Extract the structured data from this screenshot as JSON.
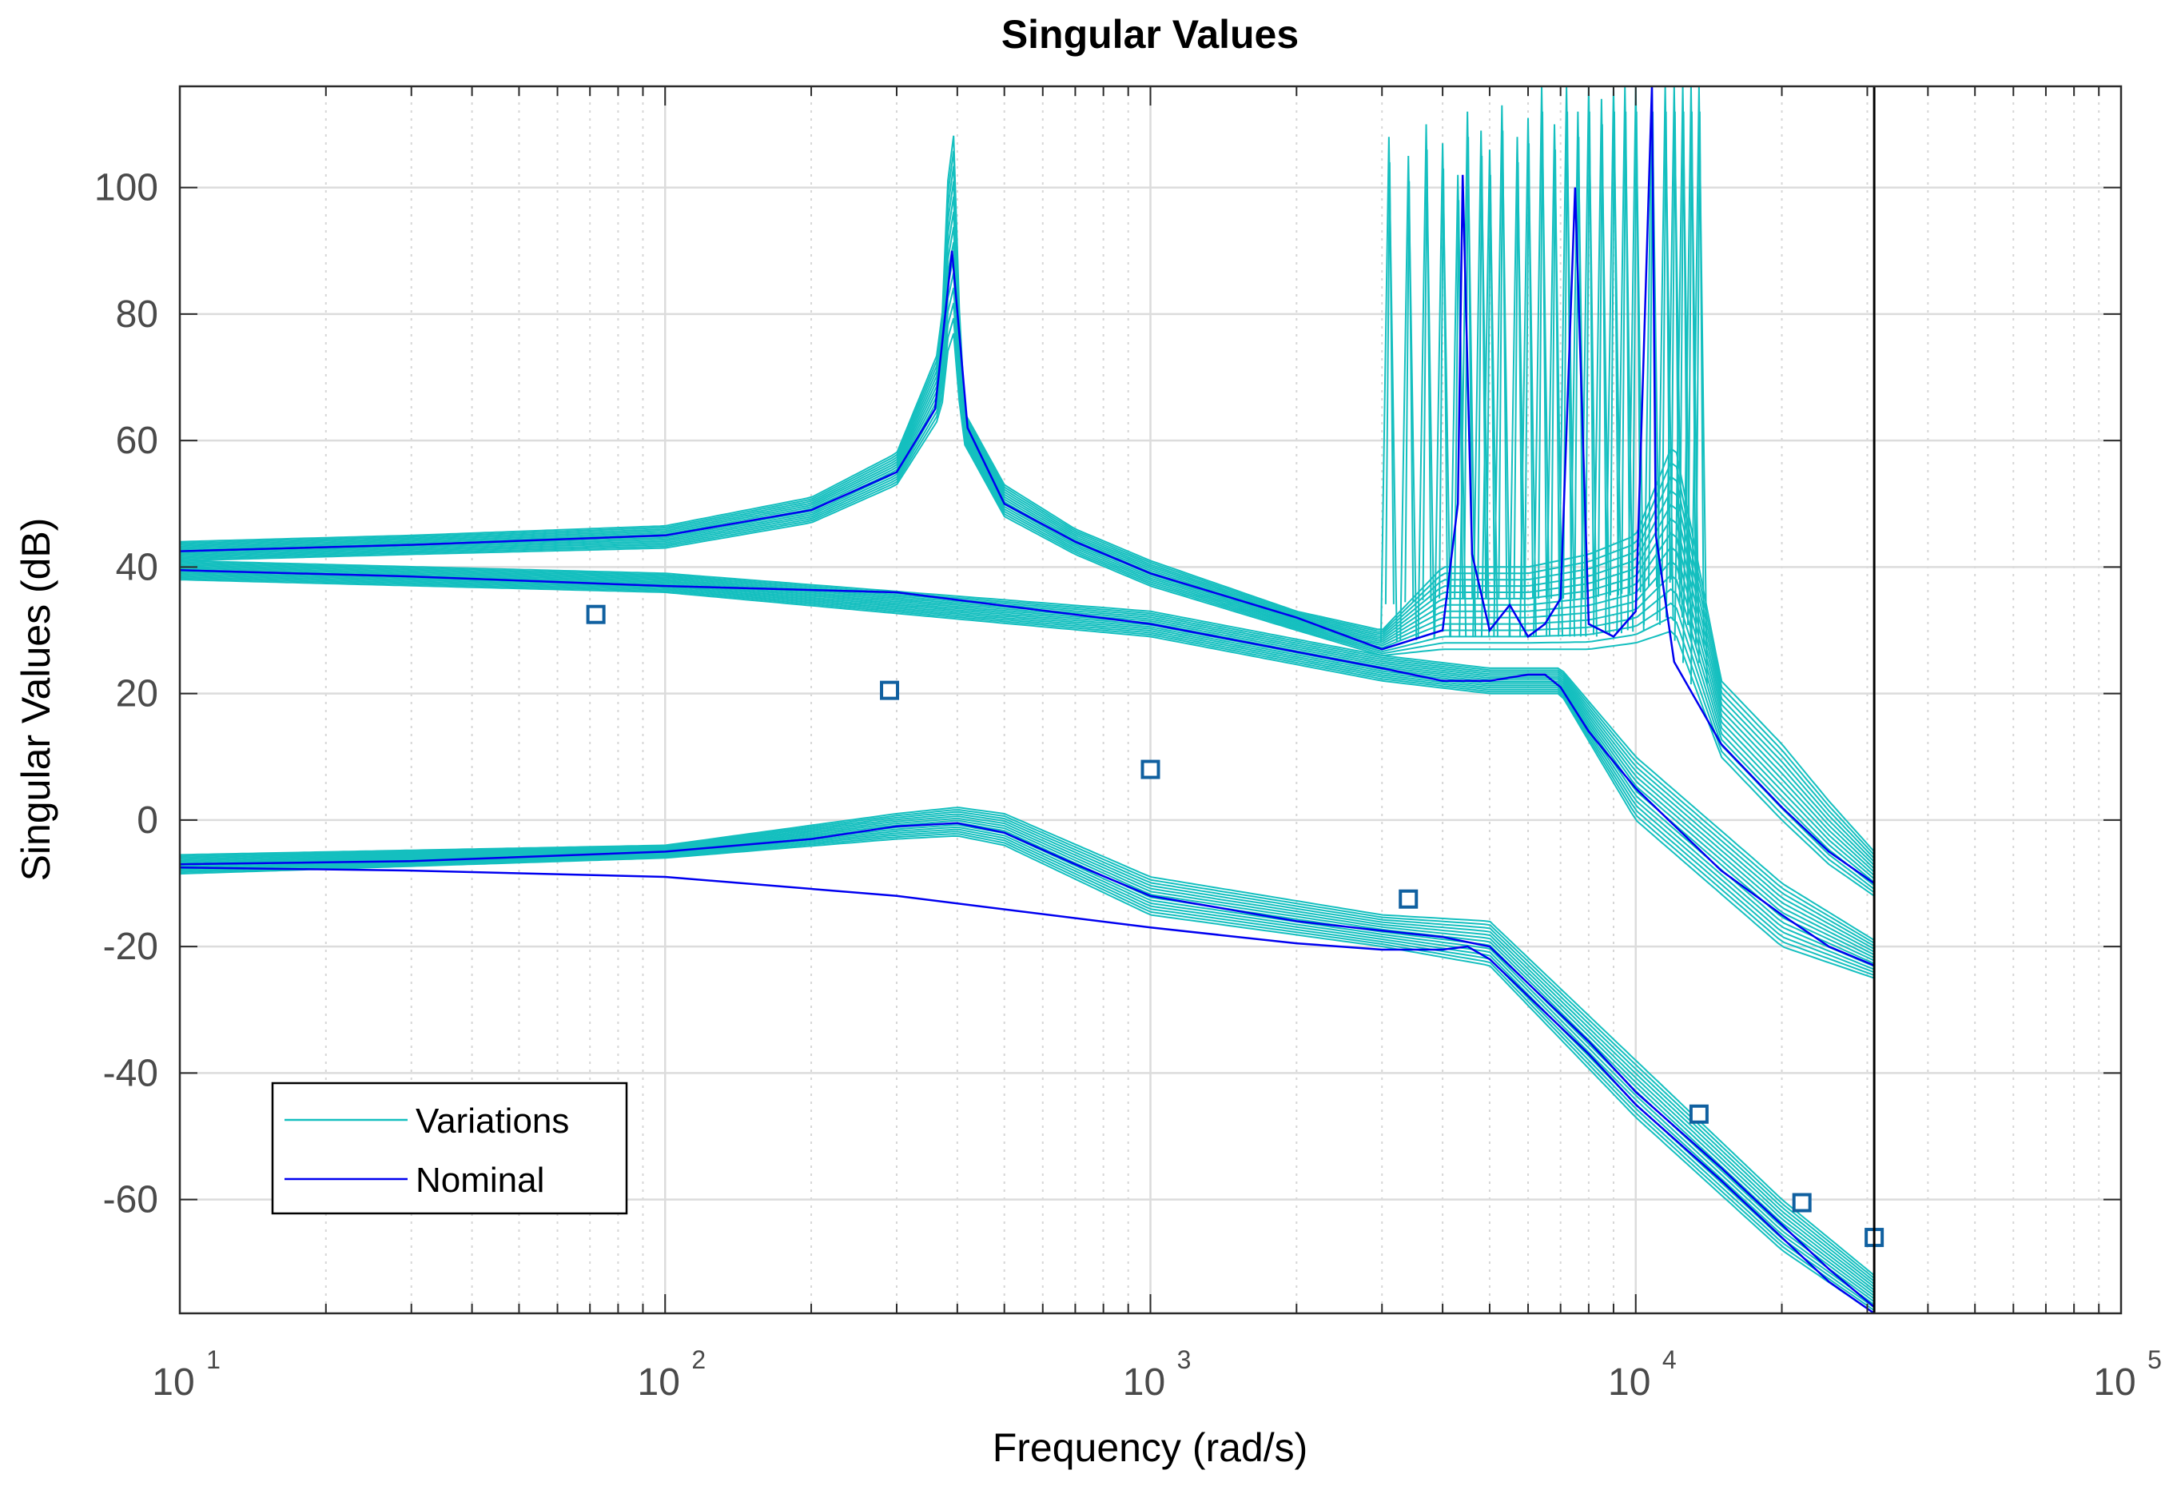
{
  "chart_data": {
    "type": "line",
    "title": "Singular Values",
    "xlabel": "Frequency (rad/s)",
    "ylabel": "Singular Values (dB)",
    "xscale": "log",
    "xlim": [
      10,
      100000
    ],
    "ylim": [
      -78,
      116
    ],
    "x_ticks": [
      {
        "base": "10",
        "exp": "1"
      },
      {
        "base": "10",
        "exp": "2"
      },
      {
        "base": "10",
        "exp": "3"
      },
      {
        "base": "10",
        "exp": "4"
      },
      {
        "base": "10",
        "exp": "5"
      }
    ],
    "y_ticks": [
      "100",
      "80",
      "60",
      "40",
      "20",
      "0",
      "-20",
      "-40",
      "-60"
    ],
    "grid": "major and minor",
    "legend": {
      "position": "bottom-left",
      "entries": [
        {
          "label": "Variations",
          "color": "#14BFBF"
        },
        {
          "label": "Nominal",
          "color": "#0000F0"
        }
      ]
    },
    "colors": {
      "variations": "#14BFBF",
      "nominal": "#0000F0",
      "marker": "#1060A0",
      "cutoff_line": "#000000"
    },
    "cutoff_frequency": 31000,
    "series": [
      {
        "name": "Nominal SV1",
        "style": "nominal",
        "x": [
          10,
          30,
          100,
          200,
          300,
          360,
          390,
          420,
          500,
          700,
          1000,
          2000,
          3000,
          4000,
          4300,
          4400,
          4600,
          5000,
          5500,
          6000,
          6500,
          7000,
          7500,
          8000,
          9000,
          10000,
          10800,
          11000,
          12000,
          15000,
          20000,
          25000,
          31000
        ],
        "y": [
          42.5,
          43.5,
          45,
          49,
          55,
          65,
          90,
          62,
          50,
          44,
          39,
          32,
          27,
          30,
          50,
          102,
          42,
          30,
          34,
          29,
          31,
          35,
          100,
          31,
          29,
          33,
          116,
          45,
          25,
          12,
          2,
          -5,
          -10
        ]
      },
      {
        "name": "Nominal SV2",
        "style": "nominal",
        "x": [
          10,
          30,
          100,
          300,
          1000,
          3000,
          4000,
          5000,
          6000,
          6500,
          7000,
          8000,
          10000,
          15000,
          20000,
          25000,
          31000
        ],
        "y": [
          39.5,
          38.5,
          37,
          36,
          31,
          24,
          22,
          22,
          23,
          23,
          21,
          14,
          5,
          -8,
          -15,
          -20,
          -23
        ]
      },
      {
        "name": "Nominal SV3",
        "style": "nominal",
        "x": [
          10,
          30,
          100,
          200,
          300,
          400,
          500,
          700,
          1000,
          2000,
          3000,
          4000,
          5000,
          8000,
          10000,
          15000,
          20000,
          25000,
          31000
        ],
        "y": [
          -7,
          -6.5,
          -5,
          -3,
          -1,
          -0.5,
          -2,
          -7,
          -12,
          -16,
          -17.5,
          -18.5,
          -20,
          -35,
          -43,
          -55,
          -64,
          -71,
          -77
        ]
      },
      {
        "name": "Nominal SV4",
        "style": "nominal",
        "x": [
          10,
          30,
          100,
          300,
          1000,
          2000,
          3000,
          4000,
          4500,
          5000,
          8000,
          10000,
          15000,
          20000,
          25000,
          31000
        ],
        "y": [
          -7.5,
          -8,
          -9,
          -12,
          -17,
          -19.5,
          -20.5,
          -20.5,
          -20,
          -22,
          -37,
          -45,
          -57,
          -66,
          -73,
          -78
        ]
      }
    ],
    "variations_envelope": {
      "sv1_upper": {
        "x": [
          10,
          30,
          100,
          200,
          300,
          370,
          390,
          410,
          500,
          700,
          1000,
          2000,
          3000,
          4000,
          6000,
          8000,
          10000,
          12000,
          15000,
          20000,
          25000,
          31000
        ],
        "y": [
          44,
          45,
          46.5,
          51,
          58,
          75,
          116,
          65,
          53,
          46,
          41,
          33,
          30,
          40,
          40,
          42,
          45,
          60,
          22,
          12,
          3,
          -5
        ]
      },
      "sv1_lower": {
        "x": [
          10,
          30,
          100,
          200,
          300,
          370,
          390,
          410,
          500,
          700,
          1000,
          2000,
          3000,
          4000,
          6000,
          8000,
          10000,
          12000,
          15000,
          20000,
          25000,
          31000
        ],
        "y": [
          41,
          42,
          43,
          47,
          53,
          64,
          80,
          60,
          48,
          42,
          37,
          30,
          26,
          27,
          27,
          27,
          28,
          30,
          10,
          0,
          -7,
          -12
        ]
      },
      "sv2_upper": {
        "x": [
          10,
          100,
          1000,
          3000,
          5000,
          7000,
          10000,
          20000,
          31000
        ],
        "y": [
          41,
          39,
          33,
          26,
          24,
          24,
          10,
          -10,
          -19
        ]
      },
      "sv2_lower": {
        "x": [
          10,
          100,
          1000,
          3000,
          5000,
          7000,
          10000,
          20000,
          31000
        ],
        "y": [
          38,
          36,
          29,
          22,
          20,
          20,
          0,
          -20,
          -25
        ]
      },
      "sv3_upper": {
        "x": [
          10,
          100,
          300,
          400,
          500,
          1000,
          3000,
          5000,
          10000,
          20000,
          31000
        ],
        "y": [
          -5.5,
          -4,
          1,
          2,
          1,
          -9,
          -15,
          -16,
          -38,
          -60,
          -72
        ]
      },
      "sv3_lower": {
        "x": [
          10,
          100,
          300,
          400,
          500,
          1000,
          3000,
          5000,
          10000,
          20000,
          31000
        ],
        "y": [
          -8.5,
          -6,
          -3,
          -2.5,
          -4,
          -15,
          -20,
          -23,
          -47,
          -68,
          -78
        ]
      },
      "resonance_spikes": [
        {
          "x": 3100,
          "top": 108
        },
        {
          "x": 3400,
          "top": 105
        },
        {
          "x": 3700,
          "top": 110
        },
        {
          "x": 4000,
          "top": 107
        },
        {
          "x": 4300,
          "top": 102
        },
        {
          "x": 4500,
          "top": 112
        },
        {
          "x": 4800,
          "top": 109
        },
        {
          "x": 5000,
          "top": 106
        },
        {
          "x": 5300,
          "top": 113
        },
        {
          "x": 5700,
          "top": 108
        },
        {
          "x": 6000,
          "top": 111
        },
        {
          "x": 6400,
          "top": 116
        },
        {
          "x": 6800,
          "top": 110
        },
        {
          "x": 7200,
          "top": 116
        },
        {
          "x": 7600,
          "top": 112
        },
        {
          "x": 8000,
          "top": 116
        },
        {
          "x": 8500,
          "top": 114
        },
        {
          "x": 9000,
          "top": 116
        },
        {
          "x": 9500,
          "top": 116
        },
        {
          "x": 10000,
          "top": 116
        },
        {
          "x": 10800,
          "top": 116
        },
        {
          "x": 11500,
          "top": 116
        },
        {
          "x": 12000,
          "top": 116
        },
        {
          "x": 12500,
          "top": 116
        },
        {
          "x": 13000,
          "top": 116
        },
        {
          "x": 13500,
          "top": 116
        }
      ]
    },
    "markers": {
      "shape": "square",
      "x": [
        72,
        290,
        1000,
        3400,
        13500,
        22000,
        31000
      ],
      "y": [
        32.5,
        20.5,
        8,
        -12.5,
        -46.5,
        -60.5,
        -66
      ]
    }
  }
}
